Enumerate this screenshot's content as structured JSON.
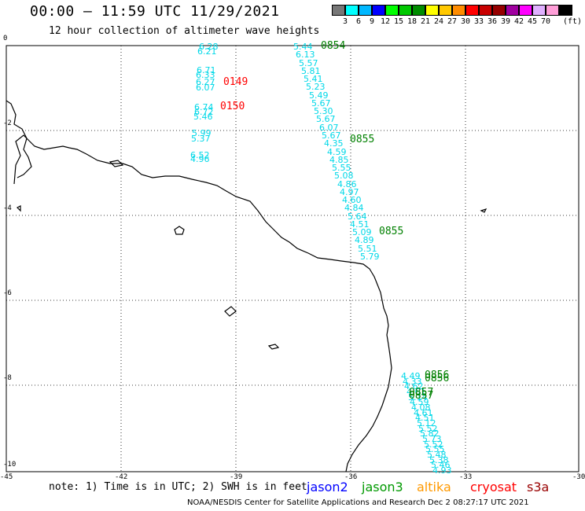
{
  "header": {
    "title": "00:00 — 11:59 UTC 11/29/2021",
    "subtitle": "12 hour collection of altimeter wave heights"
  },
  "colorbar": {
    "unit": "(ft)",
    "swatches": [
      "#777777",
      "#00ffff",
      "#00b8ff",
      "#0000ff",
      "#00ff00",
      "#00c800",
      "#008c00",
      "#ffff00",
      "#ffc800",
      "#ff8c00",
      "#ff0000",
      "#c80000",
      "#960000",
      "#a000a0",
      "#ff00ff",
      "#e0b0ff",
      "#ff9ed8",
      "#000000"
    ],
    "labels": [
      "3",
      "6",
      "9",
      "12",
      "15",
      "18",
      "21",
      "24",
      "27",
      "30",
      "33",
      "36",
      "39",
      "42",
      "45",
      "70"
    ]
  },
  "axes": {
    "x_ticks": [
      "-45",
      "-42",
      "-39",
      "-36",
      "-33",
      "-30"
    ],
    "y_ticks": [
      "0",
      "-2",
      "-4",
      "-6",
      "-8",
      "-10"
    ]
  },
  "passes": [
    {
      "label": "0149",
      "color": "#ff0000"
    },
    {
      "label": "0150",
      "color": "#ff0000"
    },
    {
      "label": "0854",
      "color": "#008000"
    },
    {
      "label": "0855",
      "color": "#008000"
    },
    {
      "label": "0855",
      "color": "#008000"
    },
    {
      "label": "0856",
      "color": "#008000"
    },
    {
      "label": "0856",
      "color": "#008000"
    },
    {
      "label": "0857",
      "color": "#008000"
    },
    {
      "label": "0857",
      "color": "#008000"
    }
  ],
  "track_west_values": [
    "6.28",
    "6.21",
    "6.71",
    "6.33",
    "6.27",
    "6.07",
    "6.74",
    "6.72",
    "5.46",
    "5.99",
    "5.37",
    "6.52",
    "4.96"
  ],
  "track_center_values": [
    "5.44",
    "6.13",
    "5.57",
    "5.81",
    "5.41",
    "5.23",
    "5.49",
    "5.67",
    "5.30",
    "5.67",
    "6.07",
    "5.67",
    "4.35",
    "4.59",
    "4.85",
    "5.55",
    "5.08",
    "4.86",
    "4.97",
    "4.60",
    "4.84",
    "5.64",
    "4.51",
    "5.09",
    "4.89",
    "5.51",
    "5.79"
  ],
  "track_south_values": [
    "4.49",
    "4.33",
    "4.62",
    "4.61",
    "5.14",
    "4.59",
    "4.08",
    "4.61",
    "4.51",
    "5.12",
    "5.52",
    "5.82",
    "5.73",
    "5.52",
    "5.55",
    "5.48",
    "5.38",
    "5.46",
    "4.93"
  ],
  "note": "note: 1) Time is in UTC; 2) SWH is in feet",
  "legend": [
    {
      "label": "jason2",
      "color": "#0000ff"
    },
    {
      "label": "jason3",
      "color": "#009900"
    },
    {
      "label": "altika",
      "color": "#ff9900"
    },
    {
      "label": "cryosat",
      "color": "#ff0000"
    },
    {
      "label": "s3a",
      "color": "#990000"
    }
  ],
  "footer": "NOAA/NESDIS Center for Satellite Applications and Research     Dec  2 08:27:17 UTC 2021"
}
